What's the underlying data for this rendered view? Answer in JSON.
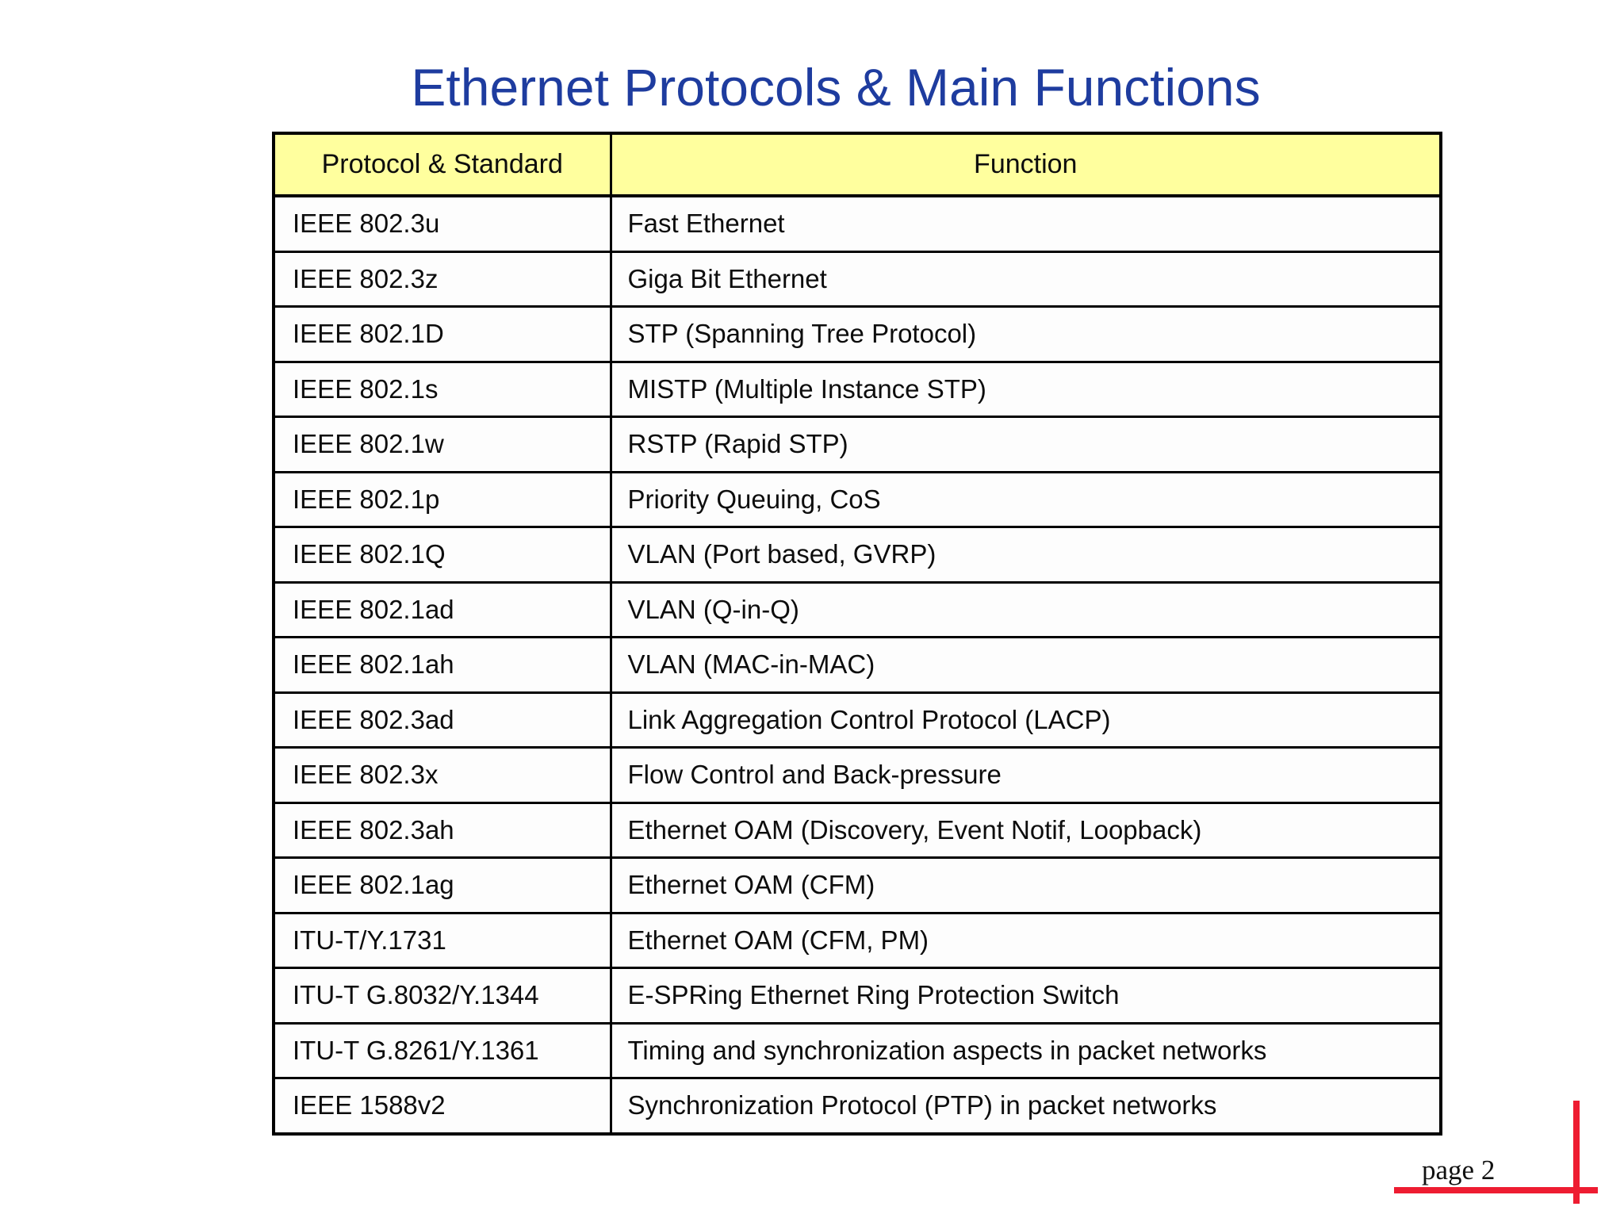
{
  "title": {
    "text": "Ethernet Protocols & Main Functions"
  },
  "colors": {
    "title_color": "#1e3c9f",
    "header_bg": "#ffff9e",
    "accent_red": "#ee1c31",
    "border_black": "#000000"
  },
  "table": {
    "headers": {
      "protocol": "Protocol & Standard",
      "function": "Function"
    },
    "rows": [
      {
        "protocol": "IEEE 802.3u",
        "function": "Fast Ethernet"
      },
      {
        "protocol": "IEEE 802.3z",
        "function": "Giga Bit Ethernet"
      },
      {
        "protocol": "IEEE 802.1D",
        "function": "STP (Spanning Tree Protocol)"
      },
      {
        "protocol": "IEEE 802.1s",
        "function": "MISTP (Multiple Instance STP)"
      },
      {
        "protocol": "IEEE 802.1w",
        "function": "RSTP (Rapid STP)"
      },
      {
        "protocol": "IEEE 802.1p",
        "function": "Priority Queuing, CoS"
      },
      {
        "protocol": "IEEE 802.1Q",
        "function": "VLAN (Port based, GVRP)"
      },
      {
        "protocol": "IEEE 802.1ad",
        "function": "VLAN (Q-in-Q)"
      },
      {
        "protocol": "IEEE 802.1ah",
        "function": "VLAN (MAC-in-MAC)"
      },
      {
        "protocol": "IEEE 802.3ad",
        "function": "Link Aggregation Control Protocol (LACP)"
      },
      {
        "protocol": "IEEE 802.3x",
        "function": "Flow Control and Back-pressure"
      },
      {
        "protocol": "IEEE 802.3ah",
        "function": "Ethernet OAM (Discovery, Event Notif, Loopback)"
      },
      {
        "protocol": "IEEE 802.1ag",
        "function": "Ethernet OAM (CFM)"
      },
      {
        "protocol": "ITU-T/Y.1731",
        "function": "Ethernet OAM (CFM, PM)"
      },
      {
        "protocol": "ITU-T G.8032/Y.1344",
        "function": "E-SPRing Ethernet Ring Protection Switch"
      },
      {
        "protocol": "ITU-T G.8261/Y.1361",
        "function": "Timing and synchronization aspects in packet networks"
      },
      {
        "protocol": "IEEE 1588v2",
        "function": "Synchronization Protocol (PTP) in packet networks"
      }
    ]
  },
  "footer": {
    "page_label": "page 2"
  }
}
